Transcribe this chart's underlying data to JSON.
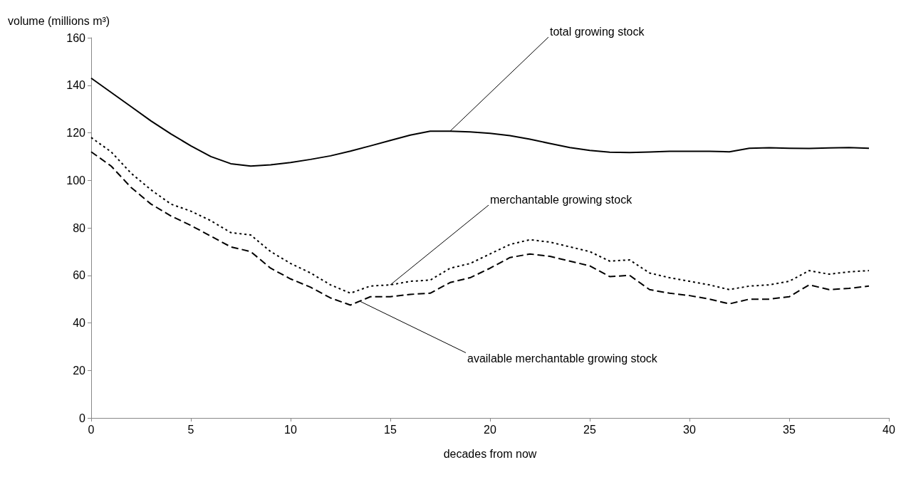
{
  "chart_data": {
    "type": "line",
    "xlabel": "decades from now",
    "ylabel": "volume (millions m³)",
    "x": [
      0,
      1,
      2,
      3,
      4,
      5,
      6,
      7,
      8,
      9,
      10,
      11,
      12,
      13,
      14,
      15,
      16,
      17,
      18,
      19,
      20,
      21,
      22,
      23,
      24,
      25,
      26,
      27,
      28,
      29,
      30,
      31,
      32,
      33,
      34,
      35,
      36,
      37,
      38,
      39
    ],
    "series": [
      {
        "color": "#000000",
        "line_style": "solid",
        "values": [
          143,
          137,
          131,
          125,
          119.5,
          114.5,
          110,
          107,
          106,
          106.5,
          107.5,
          108.8,
          110.3,
          112.3,
          114.5,
          116.8,
          119,
          120.7,
          120.7,
          120.4,
          119.8,
          118.8,
          117.3,
          115.5,
          113.8,
          112.6,
          111.8,
          111.7,
          111.9,
          112.2,
          112.2,
          112.2,
          112,
          113.5,
          113.7,
          113.5,
          113.4,
          113.6,
          113.8,
          113.5
        ]
      },
      {
        "color": "#000000",
        "line_style": "dotted",
        "values": [
          118,
          112,
          103,
          96,
          90,
          87,
          83,
          78,
          77,
          70,
          65,
          61,
          56,
          52.5,
          55.5,
          56,
          57.5,
          58,
          63,
          65,
          69,
          73,
          75,
          74,
          72,
          70,
          66,
          66.5,
          61,
          59,
          57.5,
          56,
          54,
          55.5,
          56,
          57.5,
          62,
          60.5,
          61.5,
          62
        ]
      },
      {
        "color": "#000000",
        "line_style": "dashed",
        "values": [
          112,
          106,
          97,
          90,
          85,
          81,
          76.5,
          72,
          70,
          63,
          58.5,
          55,
          50.5,
          47.5,
          51,
          51,
          52,
          52.5,
          57,
          59,
          63,
          67.5,
          69,
          68,
          66,
          64,
          59.5,
          60,
          54,
          52.5,
          51.5,
          50,
          48,
          50,
          50,
          51,
          56,
          54,
          54.5,
          55.5
        ]
      }
    ],
    "annotations": [
      {
        "text": "total growing stock",
        "x": 18,
        "y": 120.7
      },
      {
        "text": "merchantable growing stock",
        "x": 15,
        "y": 56
      },
      {
        "text": "available merchantable growing stock",
        "x": 13.5,
        "y": 49
      }
    ],
    "xlim": [
      0,
      40
    ],
    "xticks": [
      0,
      5,
      10,
      15,
      20,
      25,
      30,
      35,
      40
    ],
    "ylim": [
      0,
      160
    ],
    "yticks": [
      0,
      20,
      40,
      60,
      80,
      100,
      120,
      140,
      160
    ],
    "grid": false,
    "marker": "none"
  }
}
